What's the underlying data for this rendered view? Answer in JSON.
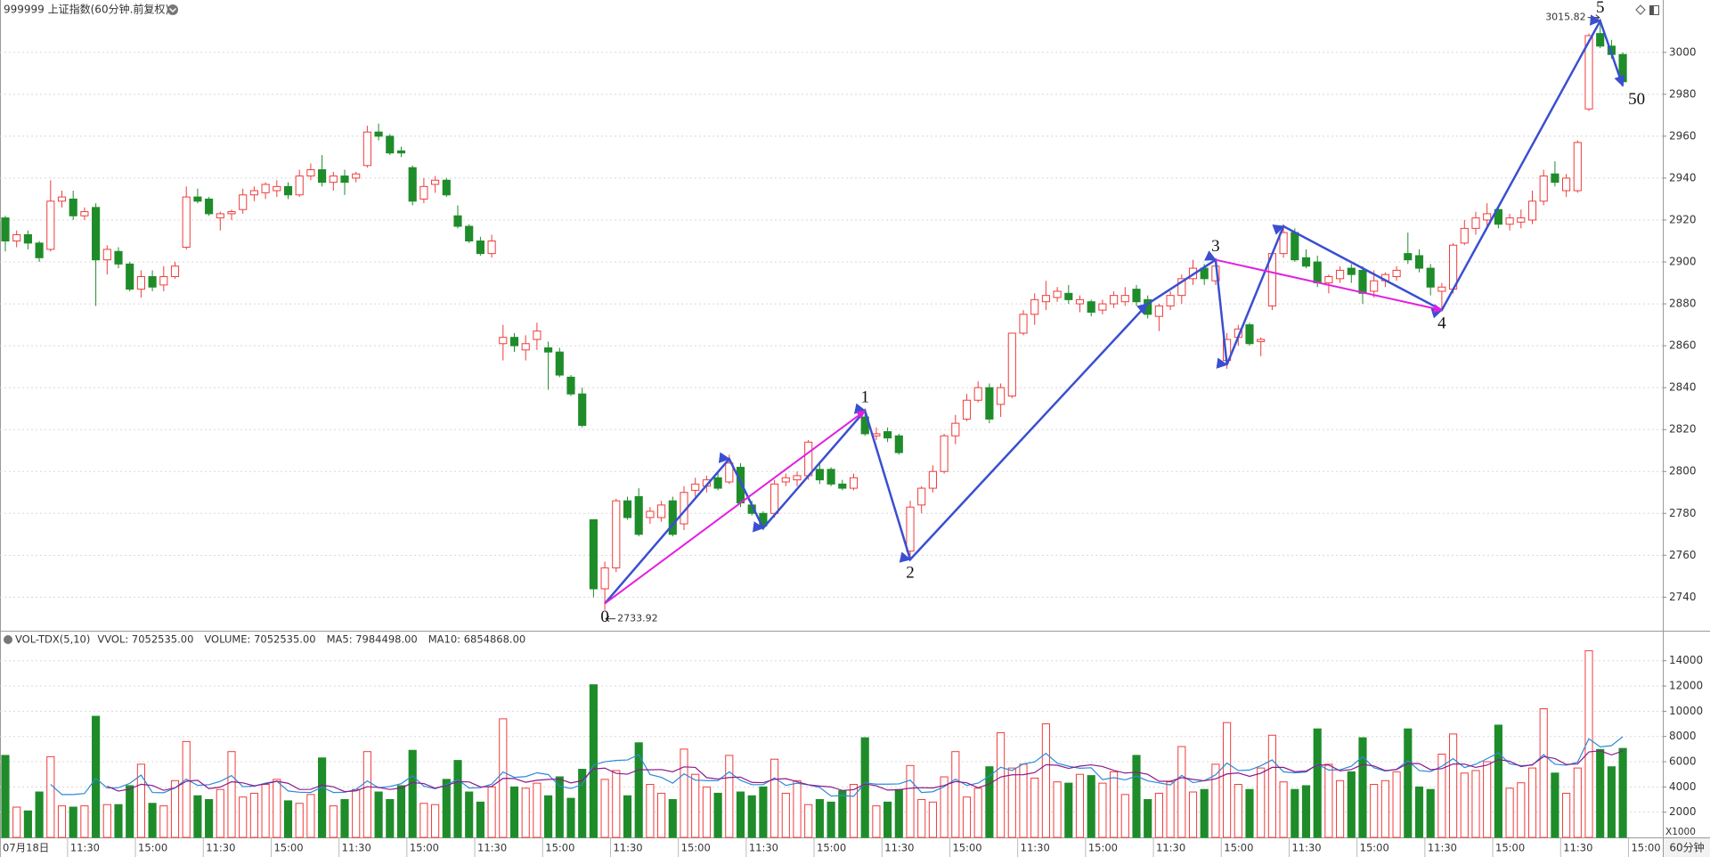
{
  "chart_data": {
    "type": "candlestick",
    "title": "999999 上证指数(60分钟.前复权)",
    "categories": [
      "07月18日",
      null,
      null,
      null,
      null,
      "11:30",
      null,
      null,
      null,
      null,
      null,
      "15:00",
      null,
      null,
      null,
      null,
      null,
      "11:30",
      null,
      null,
      null,
      null,
      null,
      "15:00",
      null,
      null,
      null,
      null,
      null,
      "11:30",
      null,
      null,
      null,
      null,
      null,
      "15:00",
      null,
      null,
      null,
      null,
      null,
      "11:30",
      null,
      null,
      null,
      null,
      null,
      "15:00",
      null,
      null,
      null,
      null,
      null,
      "11:30",
      null,
      null,
      null,
      null,
      null,
      "15:00",
      null,
      null,
      null,
      null,
      null,
      "11:30",
      null,
      null,
      null,
      null,
      null,
      "15:00",
      null,
      null,
      null,
      null,
      null,
      "11:30",
      null,
      null,
      null,
      null,
      null,
      "15:00",
      null,
      null,
      null,
      null,
      null,
      "11:30",
      null,
      null,
      null,
      null,
      null,
      "15:00",
      null,
      null,
      null,
      null,
      null,
      "11:30",
      null,
      null,
      null,
      null,
      null,
      "15:00",
      null,
      null,
      null,
      null,
      null,
      "11:30",
      null,
      null,
      null,
      null,
      null,
      "15:00",
      null,
      null,
      null,
      null,
      null,
      "11:30",
      null,
      null,
      null,
      null,
      null,
      "15:00",
      null,
      null,
      null,
      null,
      null,
      "11:30",
      null,
      null,
      null,
      null,
      null,
      "15:00"
    ],
    "open": [
      2921,
      2910,
      2913,
      2909,
      2906,
      2929,
      2930,
      2922,
      2926,
      2901,
      2905,
      2899,
      2887,
      2893,
      2889,
      2893,
      2907,
      2931,
      2930,
      2921,
      2923,
      2925,
      2932,
      2933,
      2934,
      2936,
      2932,
      2941,
      2944,
      2938,
      2941,
      2940,
      2946,
      2962,
      2960,
      2953,
      2945,
      2930,
      2937,
      2939,
      2922,
      2917,
      2910,
      2904,
      2861,
      2864,
      2858,
      2863,
      2859,
      2857,
      2845,
      2837,
      2777,
      2744,
      2754,
      2786,
      2788,
      2778,
      2778,
      2786,
      2775,
      2791,
      2793,
      2797,
      2795,
      2802,
      2784,
      2780,
      2780,
      2795,
      2796,
      2798,
      2801,
      2801,
      2794,
      2792,
      2826,
      2817,
      2819,
      2817,
      2762,
      2784,
      2792,
      2800,
      2817,
      2825,
      2834,
      2840,
      2832,
      2836,
      2866,
      2875,
      2881,
      2883,
      2885,
      2880,
      2881,
      2877,
      2880,
      2881,
      2887,
      2882,
      2874,
      2879,
      2884,
      2892,
      2897,
      2891,
      2853,
      2864,
      2870,
      2862,
      2879,
      2904,
      2914,
      2902,
      2900,
      2890,
      2892,
      2897,
      2896,
      2886,
      2891,
      2893,
      2904,
      2903,
      2897,
      2886,
      2887,
      2909,
      2916,
      2920,
      2925,
      2918,
      2919,
      2920,
      2929,
      2942,
      2934,
      2934,
      2973,
      3009,
      3003,
      2999
    ],
    "high": [
      2922,
      2915,
      2915,
      2910,
      2939,
      2934,
      2934,
      2926,
      2928,
      2908,
      2907,
      2900,
      2896,
      2896,
      2898,
      2900,
      2936,
      2935,
      2931,
      2924,
      2925,
      2935,
      2936,
      2938,
      2939,
      2938,
      2944,
      2947,
      2951,
      2943,
      2944,
      2943,
      2965,
      2966,
      2961,
      2955,
      2946,
      2940,
      2941,
      2940,
      2927,
      2918,
      2912,
      2913,
      2870,
      2866,
      2865,
      2871,
      2862,
      2859,
      2846,
      2840,
      2777,
      2757,
      2787,
      2788,
      2792,
      2783,
      2786,
      2788,
      2793,
      2797,
      2798,
      2800,
      2808,
      2804,
      2786,
      2781,
      2796,
      2799,
      2800,
      2815,
      2805,
      2802,
      2796,
      2799,
      2830,
      2821,
      2821,
      2818,
      2786,
      2793,
      2803,
      2818,
      2827,
      2837,
      2843,
      2842,
      2842,
      2866,
      2877,
      2885,
      2891,
      2888,
      2889,
      2884,
      2882,
      2882,
      2886,
      2888,
      2889,
      2884,
      2880,
      2886,
      2894,
      2901,
      2899,
      2901,
      2866,
      2870,
      2871,
      2864,
      2904,
      2918,
      2916,
      2906,
      2903,
      2894,
      2898,
      2899,
      2898,
      2896,
      2895,
      2898,
      2914,
      2906,
      2899,
      2890,
      2909,
      2920,
      2924,
      2928,
      2926,
      2923,
      2925,
      2934,
      2944,
      2948,
      2942,
      2958,
      3009,
      3015.82,
      3006,
      3000
    ],
    "low": [
      2905,
      2907,
      2906,
      2900,
      2905,
      2926,
      2920,
      2920,
      2879,
      2894,
      2897,
      2886,
      2883,
      2886,
      2886,
      2892,
      2906,
      2928,
      2922,
      2915,
      2920,
      2923,
      2929,
      2930,
      2931,
      2930,
      2931,
      2939,
      2936,
      2934,
      2932,
      2938,
      2945,
      2958,
      2951,
      2950,
      2927,
      2928,
      2933,
      2931,
      2916,
      2909,
      2903,
      2902,
      2853,
      2857,
      2853,
      2858,
      2839,
      2845,
      2836,
      2821,
      2740,
      2733.92,
      2752,
      2777,
      2769,
      2775,
      2776,
      2769,
      2772,
      2788,
      2790,
      2791,
      2794,
      2783,
      2779,
      2772,
      2778,
      2793,
      2793,
      2796,
      2794,
      2793,
      2791,
      2791,
      2817,
      2815,
      2814,
      2808,
      2758,
      2780,
      2790,
      2799,
      2813,
      2824,
      2833,
      2823,
      2826,
      2835,
      2865,
      2870,
      2877,
      2881,
      2880,
      2876,
      2874,
      2875,
      2878,
      2879,
      2879,
      2873,
      2867,
      2877,
      2880,
      2889,
      2889,
      2889,
      2849,
      2860,
      2860,
      2855,
      2877,
      2902,
      2900,
      2897,
      2888,
      2885,
      2890,
      2890,
      2880,
      2883,
      2888,
      2891,
      2899,
      2895,
      2884,
      2877,
      2885,
      2908,
      2913,
      2917,
      2916,
      2915,
      2916,
      2918,
      2927,
      2936,
      2931,
      2933,
      2972,
      3002,
      2997,
      2985
    ],
    "close": [
      2910,
      2913,
      2909,
      2902,
      2929,
      2931,
      2922,
      2924,
      2901,
      2906,
      2899,
      2887,
      2893,
      2888,
      2893,
      2898,
      2931,
      2929,
      2923,
      2923,
      2924,
      2932,
      2934,
      2937,
      2936,
      2932,
      2941,
      2944,
      2938,
      2941,
      2938,
      2942,
      2962,
      2960,
      2952,
      2952,
      2929,
      2936,
      2939,
      2932,
      2917,
      2910,
      2904,
      2910,
      2864,
      2860,
      2861,
      2867,
      2857,
      2846,
      2837,
      2822,
      2744,
      2754,
      2786,
      2778,
      2770,
      2781,
      2784,
      2770,
      2790,
      2794,
      2796,
      2792,
      2804,
      2785,
      2780,
      2774,
      2794,
      2797,
      2798,
      2814,
      2796,
      2794,
      2792,
      2797,
      2818,
      2818,
      2816,
      2809,
      2783,
      2792,
      2800,
      2817,
      2823,
      2834,
      2840,
      2825,
      2840,
      2866,
      2875,
      2882,
      2884,
      2886,
      2882,
      2882,
      2876,
      2880,
      2884,
      2884,
      2881,
      2875,
      2879,
      2884,
      2892,
      2897,
      2892,
      2898,
      2863,
      2868,
      2861,
      2863,
      2904,
      2914,
      2901,
      2898,
      2890,
      2893,
      2896,
      2894,
      2885,
      2891,
      2894,
      2896,
      2901,
      2897,
      2888,
      2888,
      2908,
      2916,
      2921,
      2923,
      2918,
      2921,
      2921,
      2929,
      2941,
      2938,
      2940,
      2957,
      3008,
      3003,
      2999,
      2986
    ],
    "up_color": "#f03c3c",
    "down_color": "#1f8c2a",
    "ylim": [
      2724,
      3025
    ],
    "yticks": [
      2740,
      2760,
      2780,
      2800,
      2820,
      2840,
      2860,
      2880,
      2900,
      2920,
      2940,
      2960,
      2980,
      3000
    ],
    "grid": true,
    "waves": [
      {
        "color": "#3a4fd0",
        "width": 2.5,
        "x": [
          53,
          64,
          67,
          76,
          80,
          101,
          107,
          108,
          113,
          127,
          141,
          143
        ],
        "y": [
          2737,
          2806,
          2773,
          2829,
          2758,
          2880,
          2901,
          2851,
          2917,
          2877,
          3015,
          2984
        ],
        "labels": [
          "0",
          null,
          null,
          "1",
          "2",
          null,
          "3",
          null,
          null,
          "4",
          "5",
          "50"
        ]
      },
      {
        "color": "#e21fe0",
        "width": 2,
        "x": [
          53,
          76
        ],
        "y": [
          2737,
          2829
        ]
      },
      {
        "color": "#e21fe0",
        "width": 2,
        "x": [
          107,
          127
        ],
        "y": [
          2901,
          2877
        ]
      }
    ],
    "volume": {
      "header": [
        {
          "text": "VOL-TDX(5,10)",
          "color": "#333333"
        },
        {
          "text": "VVOL: 7052535.00",
          "color": "#333333"
        },
        {
          "text": "VOLUME: 7052535.00",
          "color": "#1f7fd0"
        },
        {
          "text": "MA5: 7984498.00",
          "color": "#1f7fd0"
        },
        {
          "text": "MA10: 6854868.00",
          "color": "#9b1f9b"
        }
      ],
      "values": [
        6500,
        2400,
        2100,
        3600,
        6400,
        2500,
        2400,
        2500,
        9600,
        2600,
        2600,
        4100,
        5800,
        2700,
        2500,
        4500,
        7600,
        3300,
        3000,
        3800,
        6800,
        3200,
        3500,
        4200,
        4600,
        2900,
        2700,
        3400,
        6300,
        2500,
        3000,
        3800,
        6800,
        3600,
        3000,
        4100,
        6900,
        2700,
        2600,
        4600,
        6100,
        3600,
        2800,
        4000,
        9400,
        4000,
        3900,
        4300,
        3300,
        4800,
        3100,
        5400,
        12100,
        4600,
        5300,
        3300,
        7500,
        4200,
        3500,
        3000,
        7000,
        5000,
        4000,
        3500,
        6500,
        3600,
        3300,
        4000,
        6200,
        3500,
        4500,
        2600,
        3000,
        2800,
        3700,
        4200,
        7900,
        2500,
        2800,
        3800,
        5700,
        3000,
        2800,
        4800,
        6800,
        3200,
        3900,
        5600,
        8300,
        5500,
        5800,
        4700,
        9000,
        4400,
        4300,
        5000,
        4900,
        4300,
        5200,
        3400,
        6500,
        3000,
        3500,
        4400,
        7200,
        3600,
        3800,
        5800,
        9100,
        4200,
        3800,
        5500,
        8100,
        4400,
        3800,
        4100,
        8600,
        5800,
        4500,
        5200,
        7900,
        4200,
        4500,
        5200,
        8600,
        4000,
        3800,
        6600,
        8200,
        5100,
        5300,
        6000,
        8900,
        3900,
        4327,
        5500,
        10200,
        5100,
        3500,
        5500,
        14800,
        6970,
        5600,
        7052
      ],
      "ma": [
        {
          "period": 5,
          "color": "#2b8ad8"
        },
        {
          "period": 10,
          "color": "#8b1a8b"
        }
      ],
      "ylim": [
        0,
        16100
      ],
      "yticks": [
        2000,
        4000,
        6000,
        8000,
        10000,
        12000,
        14000
      ],
      "unit_label": "X1000"
    },
    "period_label": "60分钟"
  }
}
